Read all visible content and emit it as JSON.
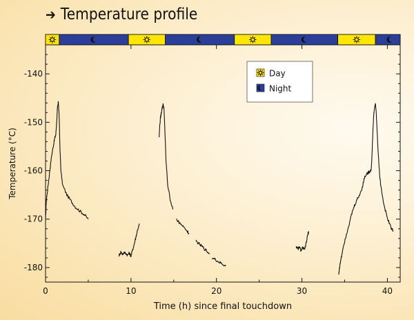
{
  "title": "Temperature profile",
  "title_icon": "arrow-right-icon",
  "chart_data": {
    "type": "line",
    "title": "Temperature profile",
    "xlabel": "Time (h) since final touchdown",
    "ylabel": "Temperature (°C)",
    "xlim": [
      0,
      41.5
    ],
    "ylim": [
      -183,
      -134
    ],
    "xticks": [
      0,
      10,
      20,
      30,
      40
    ],
    "yticks": [
      -140,
      -150,
      -160,
      -170,
      -180
    ],
    "grid": false,
    "legend": {
      "placement": "top-right",
      "entries": [
        {
          "label": "Day",
          "color": "#ffe600",
          "icon": "sun-icon"
        },
        {
          "label": "Night",
          "color": "#2b3f9a",
          "icon": "moon-icon"
        }
      ]
    },
    "day_night_bar": [
      {
        "phase": "day",
        "start": 0,
        "end": 1.6
      },
      {
        "phase": "night",
        "start": 1.6,
        "end": 9.7
      },
      {
        "phase": "day",
        "start": 9.7,
        "end": 14.0
      },
      {
        "phase": "night",
        "start": 14.0,
        "end": 22.1
      },
      {
        "phase": "day",
        "start": 22.1,
        "end": 26.4
      },
      {
        "phase": "night",
        "start": 26.4,
        "end": 34.2
      },
      {
        "phase": "day",
        "start": 34.2,
        "end": 38.6
      },
      {
        "phase": "night",
        "start": 38.6,
        "end": 41.5
      }
    ],
    "series": [
      {
        "points": [
          [
            0,
            -170
          ],
          [
            0.1,
            -166
          ],
          [
            0.3,
            -163
          ],
          [
            0.5,
            -160
          ],
          [
            0.7,
            -157
          ],
          [
            0.9,
            -155
          ],
          [
            1.05,
            -153.5
          ],
          [
            1.2,
            -152.5
          ],
          [
            1.3,
            -150
          ],
          [
            1.4,
            -147
          ],
          [
            1.5,
            -145.8
          ],
          [
            1.6,
            -149
          ],
          [
            1.7,
            -156
          ],
          [
            1.8,
            -160
          ],
          [
            2.0,
            -163
          ],
          [
            2.5,
            -165
          ],
          [
            3.0,
            -166.3
          ],
          [
            3.5,
            -167.5
          ],
          [
            4.0,
            -168.3
          ],
          [
            4.5,
            -169
          ],
          [
            5.0,
            -170
          ]
        ]
      },
      {
        "points": [
          [
            8.6,
            -177.5
          ],
          [
            8.8,
            -176.8
          ],
          [
            9.0,
            -177.2
          ],
          [
            9.3,
            -176.9
          ],
          [
            9.6,
            -177.4
          ],
          [
            9.8,
            -177
          ],
          [
            10.0,
            -177.6
          ],
          [
            10.2,
            -176.3
          ],
          [
            10.4,
            -175
          ],
          [
            10.6,
            -173.5
          ],
          [
            10.8,
            -172
          ],
          [
            11.0,
            -171
          ]
        ]
      },
      {
        "points": [
          [
            13.3,
            -153
          ],
          [
            13.35,
            -151
          ],
          [
            13.45,
            -149
          ],
          [
            13.55,
            -148
          ],
          [
            13.65,
            -147
          ],
          [
            13.75,
            -146.3
          ],
          [
            13.85,
            -147
          ],
          [
            13.95,
            -151
          ],
          [
            14.1,
            -158
          ],
          [
            14.3,
            -163
          ],
          [
            14.6,
            -166
          ],
          [
            14.9,
            -168
          ]
        ]
      },
      {
        "points": [
          [
            15.3,
            -170
          ],
          [
            15.7,
            -170.8
          ],
          [
            16.1,
            -171.5
          ],
          [
            16.5,
            -172.3
          ],
          [
            16.8,
            -173
          ]
        ]
      },
      {
        "points": [
          [
            17.6,
            -174.5
          ],
          [
            18.0,
            -175.2
          ],
          [
            18.4,
            -175.8
          ],
          [
            18.8,
            -176.5
          ],
          [
            19.2,
            -177.2
          ]
        ]
      },
      {
        "points": [
          [
            19.5,
            -178
          ],
          [
            19.9,
            -178.4
          ],
          [
            20.3,
            -178.9
          ],
          [
            20.7,
            -179.3
          ],
          [
            21.1,
            -179.7
          ]
        ]
      },
      {
        "points": [
          [
            29.3,
            -175.5
          ],
          [
            29.5,
            -176.2
          ],
          [
            29.7,
            -175.8
          ],
          [
            29.9,
            -176.5
          ],
          [
            30.1,
            -175.9
          ],
          [
            30.3,
            -176.4
          ],
          [
            30.5,
            -175
          ],
          [
            30.65,
            -173.5
          ],
          [
            30.8,
            -172.5
          ]
        ]
      },
      {
        "points": [
          [
            34.3,
            -181.5
          ],
          [
            34.4,
            -180
          ],
          [
            34.6,
            -178
          ],
          [
            34.8,
            -176
          ],
          [
            35.0,
            -174.5
          ],
          [
            35.3,
            -172.5
          ],
          [
            35.6,
            -170.5
          ],
          [
            35.9,
            -168.5
          ],
          [
            36.2,
            -167
          ],
          [
            36.5,
            -165.8
          ],
          [
            36.8,
            -164.8
          ],
          [
            37.1,
            -163.2
          ],
          [
            37.3,
            -161.5
          ],
          [
            37.5,
            -160.8
          ],
          [
            37.7,
            -160.5
          ],
          [
            37.9,
            -160.2
          ],
          [
            38.1,
            -159.8
          ],
          [
            38.2,
            -157
          ],
          [
            38.3,
            -152
          ],
          [
            38.4,
            -148.5
          ],
          [
            38.5,
            -147
          ],
          [
            38.6,
            -146.2
          ],
          [
            38.7,
            -148
          ],
          [
            38.8,
            -152
          ],
          [
            38.95,
            -157
          ],
          [
            39.1,
            -161
          ],
          [
            39.3,
            -164
          ],
          [
            39.6,
            -167
          ],
          [
            39.9,
            -169.2
          ],
          [
            40.2,
            -170.8
          ],
          [
            40.5,
            -172
          ],
          [
            40.7,
            -172.4
          ]
        ]
      }
    ]
  }
}
